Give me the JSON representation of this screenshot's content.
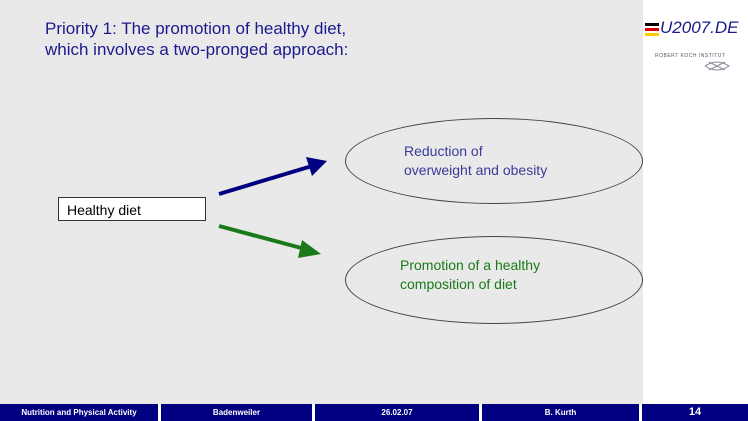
{
  "slide": {
    "title_line1": "Priority 1: The promotion of healthy diet,",
    "title_line2": "which involves a two-pronged approach:",
    "source_box": "Healthy diet",
    "outcome1_line1": "Reduction of",
    "outcome1_line2": "overweight and obesity",
    "outcome2_line1": "Promotion of a healthy",
    "outcome2_line2": "composition of diet",
    "arrow_colors": {
      "upper": "#000080",
      "lower": "#1a7a1a"
    }
  },
  "logo": {
    "eu2007": "2007.DE",
    "institute": "ROBERT KOCH INSTITUT"
  },
  "footer": {
    "topic": "Nutrition and Physical Activity",
    "place": "Badenweiler",
    "date": "26.02.07",
    "author": "B. Kurth",
    "page": "14"
  }
}
